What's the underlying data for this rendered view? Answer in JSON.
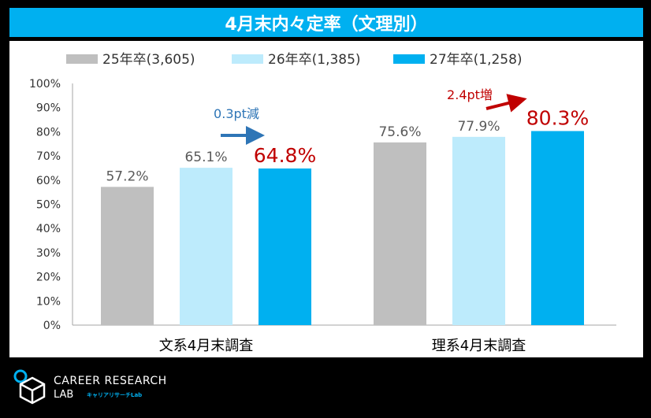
{
  "title": "4月末内々定率（文理別）",
  "colors": {
    "title_bg": "#00b0f0",
    "series_25": "#bfbfbf",
    "series_26": "#bdebfc",
    "series_27": "#00b0f0",
    "highlight_red": "#c00000",
    "annotation_blue": "#2e75b6",
    "arrow_red": "#c00000"
  },
  "logo": {
    "line1": "CAREER RESEARCH",
    "line2": "LAB",
    "line3": "キャリアリサーチLab"
  },
  "chart_data": {
    "type": "bar",
    "categories": [
      "文系4月末調査",
      "理系4月末調査"
    ],
    "series": [
      {
        "name": "25年卒(3,605)",
        "values": [
          57.2,
          75.6
        ],
        "labels": [
          "57.2%",
          "75.6%"
        ]
      },
      {
        "name": "26年卒(1,385)",
        "values": [
          65.1,
          77.9
        ],
        "labels": [
          "65.1%",
          "77.9%"
        ]
      },
      {
        "name": "27年卒(1,258)",
        "values": [
          64.8,
          80.3
        ],
        "labels": [
          "64.8%",
          "80.3%"
        ]
      }
    ],
    "ylim": [
      0,
      100
    ],
    "yticks": [
      "0%",
      "10%",
      "20%",
      "30%",
      "40%",
      "50%",
      "60%",
      "70%",
      "80%",
      "90%",
      "100%"
    ],
    "grid": false,
    "legend": "top",
    "annotations": [
      {
        "text": "0.3pt減",
        "category": 0,
        "direction": "down"
      },
      {
        "text": "2.4pt増",
        "category": 1,
        "direction": "up"
      }
    ]
  }
}
